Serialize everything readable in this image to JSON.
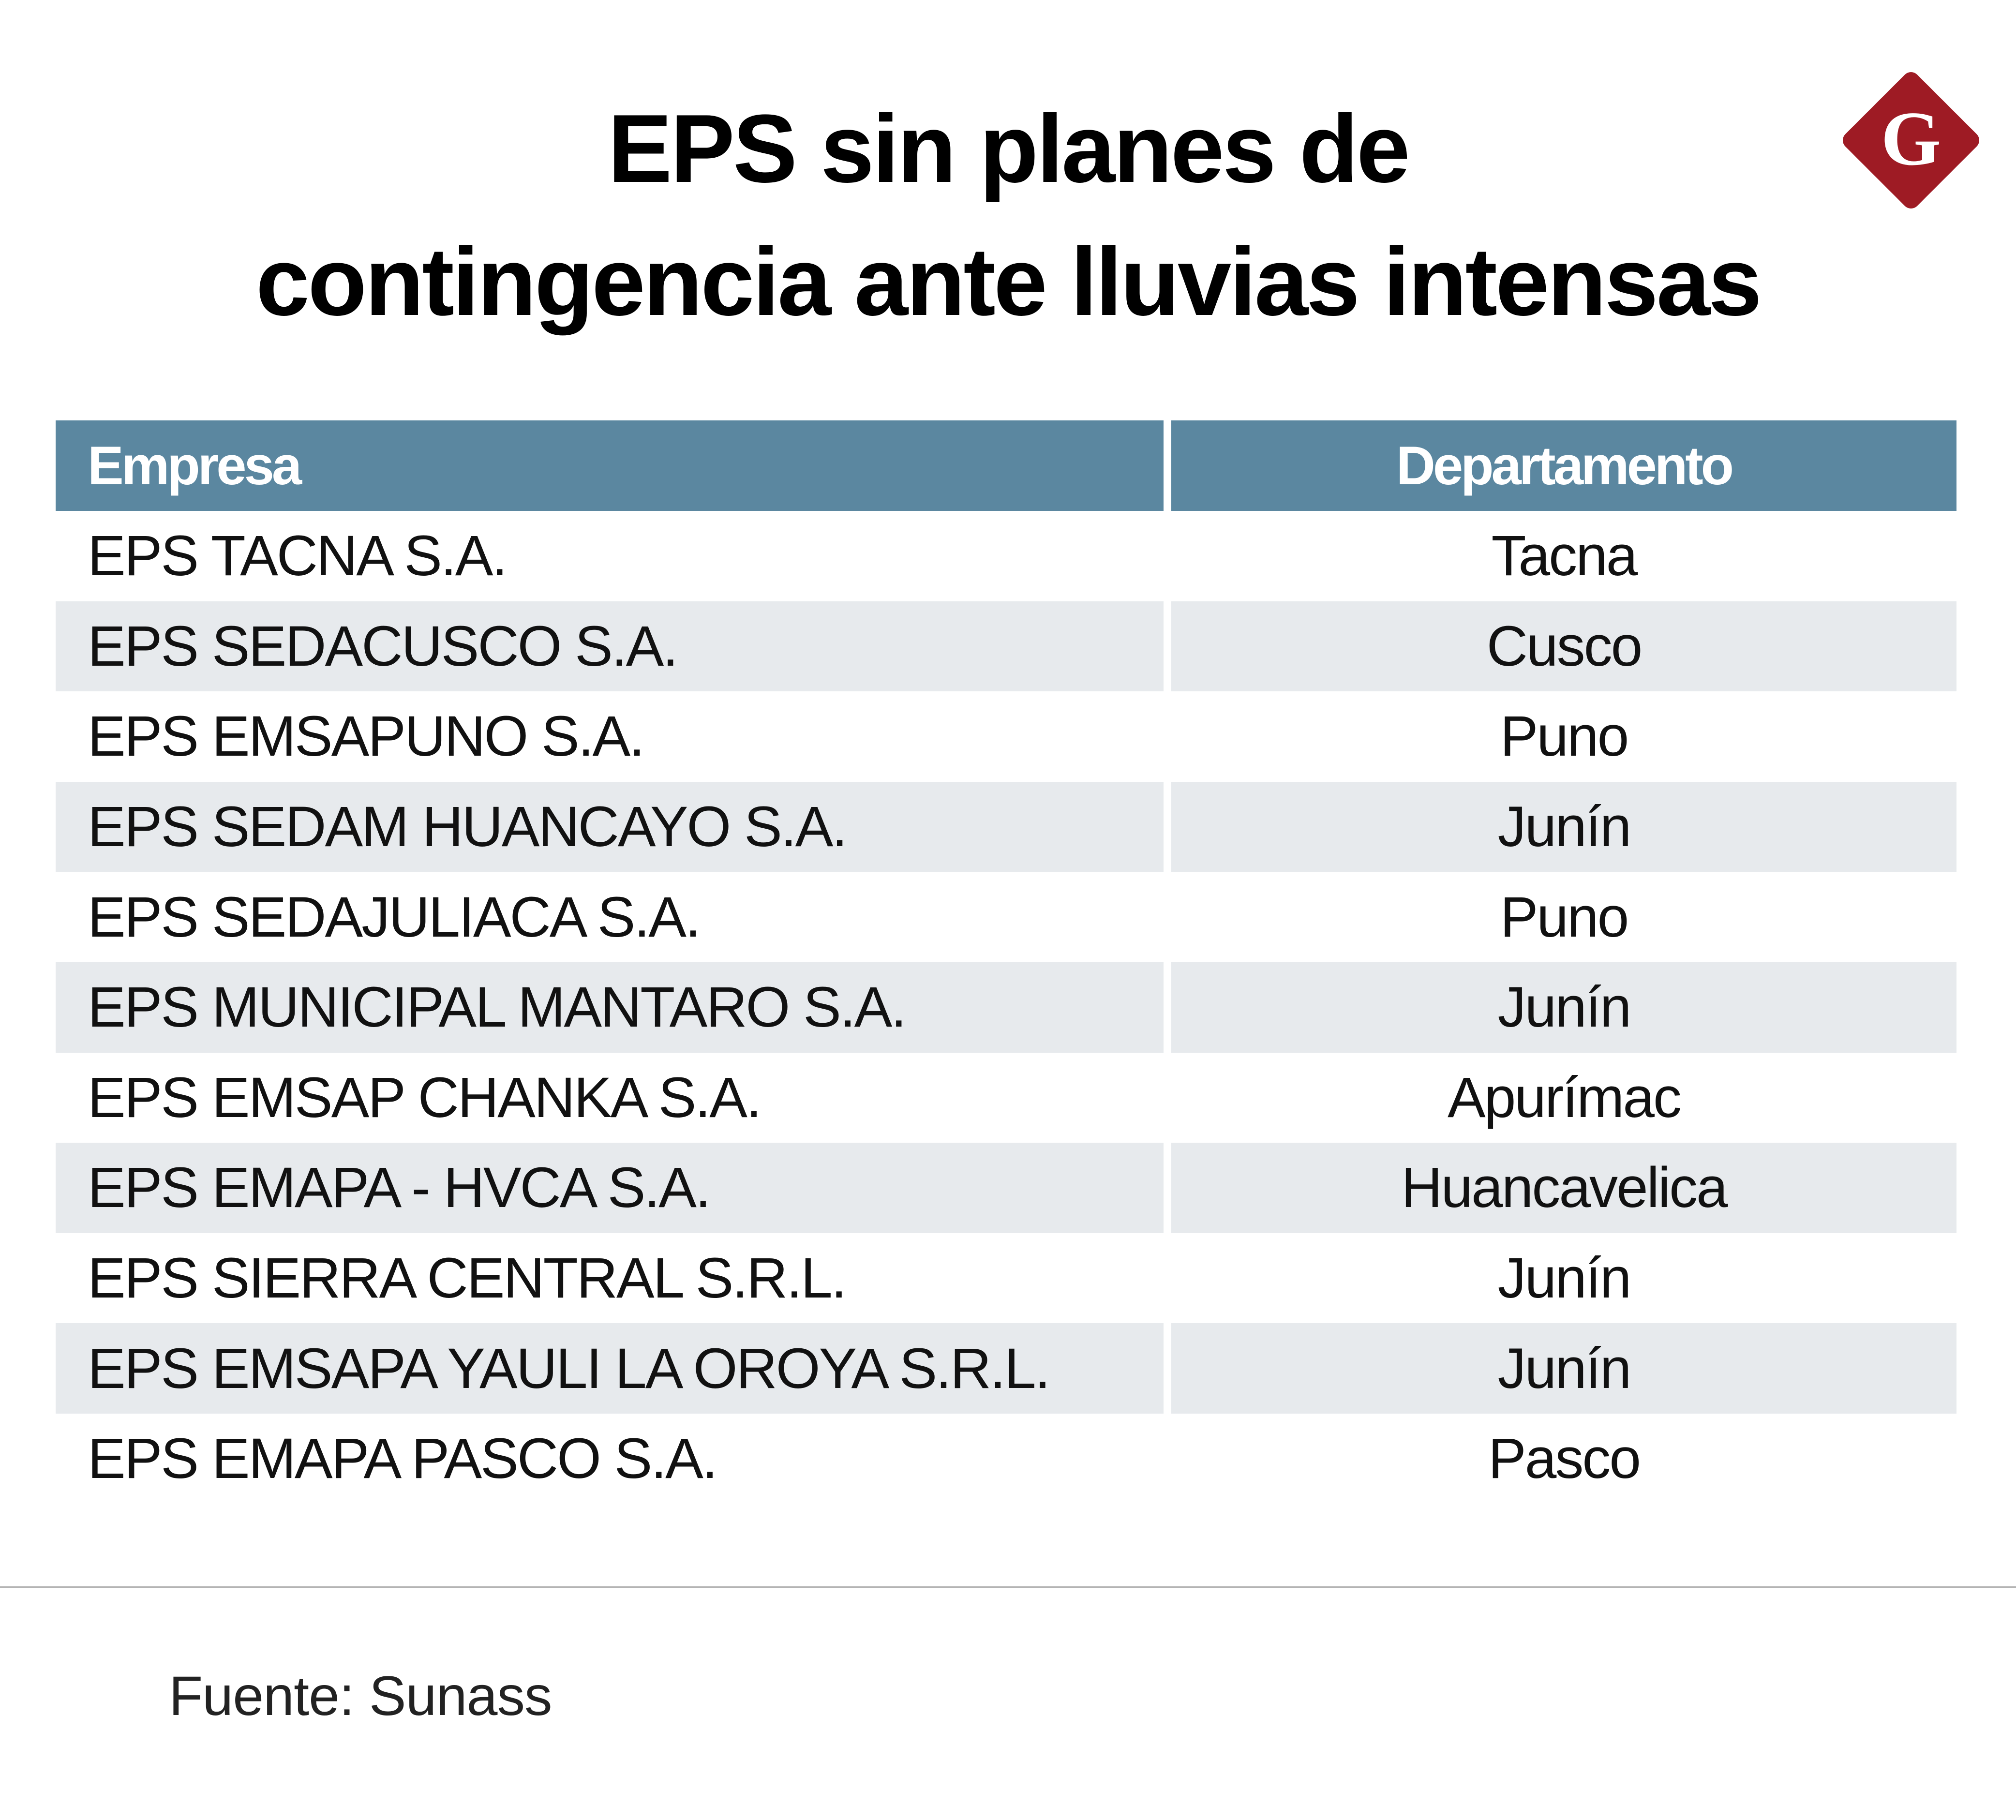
{
  "title": {
    "line1": "EPS sin planes de",
    "line2": "contingencia ante lluvias intensas"
  },
  "logo": {
    "letter": "G",
    "color": "#9e1b24"
  },
  "table": {
    "headers": [
      "Empresa",
      "Departamento"
    ],
    "header_color": "#5b87a0",
    "stripe_color": "#e7eaed",
    "rows": [
      {
        "empresa": "EPS TACNA S.A.",
        "departamento": "Tacna"
      },
      {
        "empresa": "EPS SEDACUSCO S.A.",
        "departamento": "Cusco"
      },
      {
        "empresa": "EPS EMSAPUNO S.A.",
        "departamento": "Puno"
      },
      {
        "empresa": "EPS SEDAM HUANCAYO S.A.",
        "departamento": "Junín"
      },
      {
        "empresa": "EPS SEDAJULIACA S.A.",
        "departamento": "Puno"
      },
      {
        "empresa": "EPS MUNICIPAL MANTARO S.A.",
        "departamento": "Junín"
      },
      {
        "empresa": "EPS EMSAP CHANKA S.A.",
        "departamento": "Apurímac"
      },
      {
        "empresa": "EPS EMAPA - HVCA S.A.",
        "departamento": "Huancavelica"
      },
      {
        "empresa": "EPS SIERRA CENTRAL S.R.L.",
        "departamento": "Junín"
      },
      {
        "empresa": "EPS EMSAPA YAULI LA OROYA S.R.L.",
        "departamento": "Junín"
      },
      {
        "empresa": "EPS EMAPA PASCO S.A.",
        "departamento": "Pasco"
      }
    ]
  },
  "source": "Fuente: Sunass"
}
